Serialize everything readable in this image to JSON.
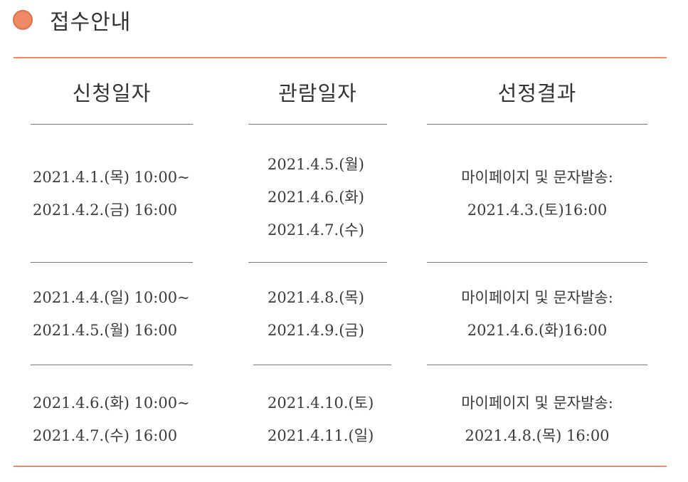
{
  "section": {
    "title": "접수안내",
    "accent_color": "#ef8a66"
  },
  "columns": [
    "신청일자",
    "관람일자",
    "선정결과"
  ],
  "rows": [
    {
      "apply": [
        "2021.4.1.(목) 10:00~",
        "2021.4.2.(금) 16:00"
      ],
      "view": [
        "2021.4.5.(월)",
        "2021.4.6.(화)",
        "2021.4.7.(수)"
      ],
      "result": [
        "마이페이지 및 문자발송:",
        "2021.4.3.(토)16:00"
      ]
    },
    {
      "apply": [
        "2021.4.4.(일) 10:00~",
        "2021.4.5.(월) 16:00"
      ],
      "view": [
        "2021.4.8.(목)",
        "2021.4.9.(금)"
      ],
      "result": [
        "마이페이지 및 문자발송:",
        "2021.4.6.(화)16:00"
      ]
    },
    {
      "apply": [
        "2021.4.6.(화) 10:00~",
        "2021.4.7.(수) 16:00"
      ],
      "view": [
        "2021.4.10.(토)",
        "2021.4.11.(일)"
      ],
      "result": [
        "마이페이지 및 문자발송:",
        "2021.4.8.(목) 16:00"
      ]
    }
  ]
}
